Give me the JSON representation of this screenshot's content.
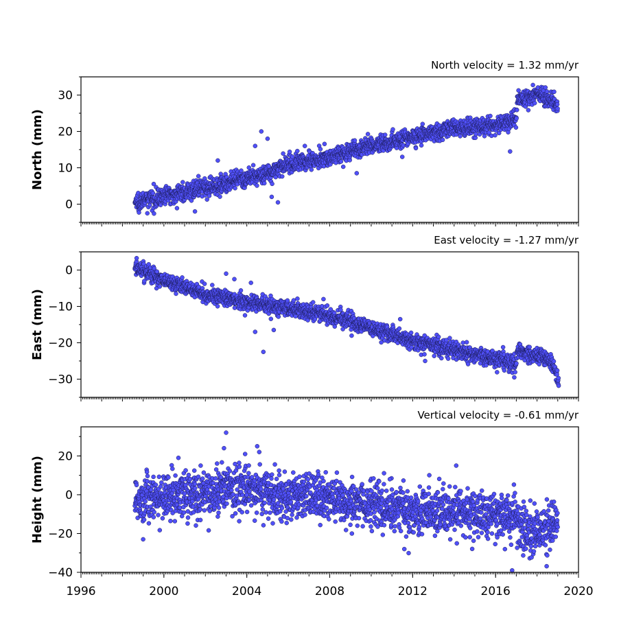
{
  "chart_data": [
    {
      "type": "scatter",
      "velocity_label": "North velocity = 1.32 mm/yr",
      "ylabel": "North (mm)",
      "xlim": [
        1996,
        2020
      ],
      "ylim": [
        -5,
        35
      ],
      "yticks": [
        0,
        10,
        20,
        30
      ],
      "xticks": [],
      "color": "#5050f8",
      "trend": [
        [
          1998.6,
          0.5
        ],
        [
          2000,
          2.2
        ],
        [
          2002,
          4.5
        ],
        [
          2004,
          7.0
        ],
        [
          2005,
          8.5
        ],
        [
          2006,
          11.0
        ],
        [
          2008,
          13.0
        ],
        [
          2010,
          16.0
        ],
        [
          2012,
          18.5
        ],
        [
          2014,
          21.0
        ],
        [
          2016,
          21.5
        ],
        [
          2017.0,
          23.5
        ],
        [
          2017.05,
          28.5
        ],
        [
          2018.2,
          30.5
        ],
        [
          2019.0,
          27.0
        ]
      ],
      "spread": 1.6,
      "outliers": [
        [
          1999.2,
          -2.5
        ],
        [
          2001.5,
          -2
        ],
        [
          2002.6,
          12
        ],
        [
          2004.7,
          20
        ],
        [
          2005.0,
          18
        ],
        [
          2004.4,
          16
        ],
        [
          2005.2,
          2
        ],
        [
          2005.5,
          0.5
        ],
        [
          2009.3,
          8.5
        ],
        [
          2016.7,
          14.5
        ],
        [
          2011.5,
          13
        ],
        [
          2006.8,
          16
        ]
      ]
    },
    {
      "type": "scatter",
      "velocity_label": "East velocity = -1.27 mm/yr",
      "ylabel": "East (mm)",
      "xlim": [
        1996,
        2020
      ],
      "ylim": [
        -35,
        5
      ],
      "yticks": [
        0,
        -10,
        -20,
        -30
      ],
      "xticks": [],
      "color": "#5050f8",
      "trend": [
        [
          1998.6,
          0.5
        ],
        [
          1999,
          0.0
        ],
        [
          2000,
          -3.0
        ],
        [
          2002,
          -6.5
        ],
        [
          2004,
          -9.0
        ],
        [
          2006,
          -10.5
        ],
        [
          2008,
          -12.5
        ],
        [
          2010,
          -16.0
        ],
        [
          2012,
          -19.5
        ],
        [
          2014,
          -22.0
        ],
        [
          2016,
          -24.5
        ],
        [
          2017.0,
          -26.0
        ],
        [
          2017.05,
          -22.0
        ],
        [
          2018.4,
          -24.0
        ],
        [
          2018.8,
          -26.5
        ],
        [
          2019.05,
          -31.0
        ]
      ],
      "spread": 1.5,
      "outliers": [
        [
          2004.8,
          -22.5
        ],
        [
          2004.4,
          -17
        ],
        [
          2005.3,
          -16.5
        ],
        [
          2003.0,
          -1
        ],
        [
          2003.4,
          -2.5
        ],
        [
          2004.2,
          -3.5
        ],
        [
          2012.6,
          -25
        ],
        [
          2016.9,
          -29.5
        ],
        [
          2011.4,
          -13.5
        ],
        [
          2007.7,
          -8
        ]
      ]
    },
    {
      "type": "scatter",
      "velocity_label": "Vertical velocity = -0.61 mm/yr",
      "ylabel": "Height (mm)",
      "xlim": [
        1996,
        2020
      ],
      "ylim": [
        -40,
        35
      ],
      "yticks": [
        -40,
        -20,
        0,
        20
      ],
      "xticks": [
        1996,
        2000,
        2004,
        2008,
        2012,
        2016,
        2020
      ],
      "color": "#5050f8",
      "trend": [
        [
          1998.6,
          -2
        ],
        [
          2000,
          -1
        ],
        [
          2002,
          1
        ],
        [
          2003,
          4
        ],
        [
          2004,
          3
        ],
        [
          2006,
          -1
        ],
        [
          2008,
          -2
        ],
        [
          2010,
          -4
        ],
        [
          2012,
          -9
        ],
        [
          2014,
          -9
        ],
        [
          2016,
          -11
        ],
        [
          2017.0,
          -12
        ],
        [
          2017.5,
          -20
        ],
        [
          2019.0,
          -15
        ]
      ],
      "spread": 8,
      "outliers": [
        [
          2003.0,
          32
        ],
        [
          2002.9,
          24
        ],
        [
          2004.5,
          25
        ],
        [
          2004.6,
          22
        ],
        [
          1999.0,
          -23
        ],
        [
          2011.6,
          -28
        ],
        [
          2016.8,
          -39
        ],
        [
          2014.1,
          15
        ],
        [
          2010.9,
          8
        ],
        [
          2000.7,
          19
        ]
      ]
    }
  ]
}
